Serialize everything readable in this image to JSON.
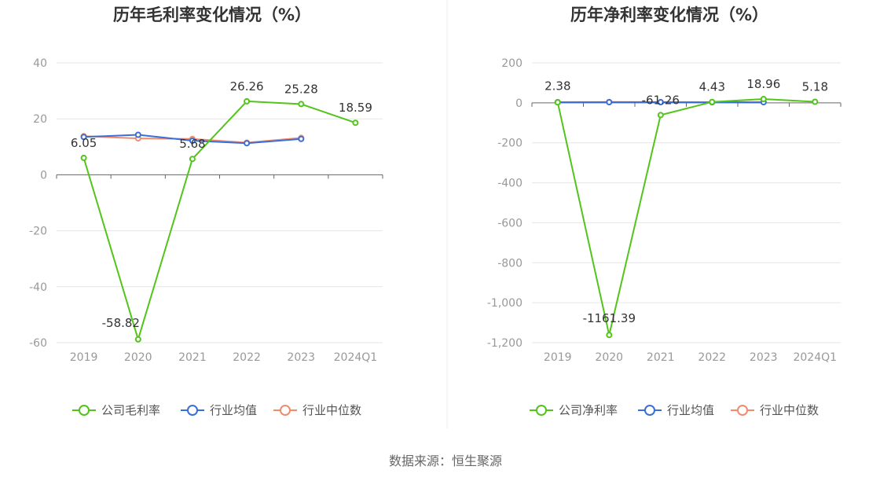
{
  "colors": {
    "company": "#52c41a",
    "industry_avg": "#3a6fd8",
    "industry_median": "#f08c6c",
    "grid": "#e6e6e6",
    "axis": "#666666",
    "divider": "#eeeeee"
  },
  "source_text": "数据来源：恒生聚源",
  "chart_data": [
    {
      "type": "line",
      "title": "历年毛利率变化情况（%）",
      "categories": [
        "2019",
        "2020",
        "2021",
        "2022",
        "2023",
        "2024Q1"
      ],
      "ylim": [
        -60,
        40
      ],
      "yticks": [
        40,
        20,
        0,
        -20,
        -40,
        -60
      ],
      "ytick_labels": [
        "40",
        "20",
        "0",
        "-20",
        "-40",
        "-60"
      ],
      "grid": true,
      "legend_position": "bottom",
      "series": [
        {
          "name": "公司毛利率",
          "color": "#52c41a",
          "values": [
            6.05,
            -58.82,
            5.68,
            26.26,
            25.28,
            18.59
          ],
          "labels": [
            "6.05",
            "-58.82",
            "5.68",
            "26.26",
            "25.28",
            "18.59"
          ]
        },
        {
          "name": "行业均值",
          "color": "#3a6fd8",
          "values": [
            13.5,
            14.3,
            12.2,
            11.3,
            12.8,
            null
          ]
        },
        {
          "name": "行业中位数",
          "color": "#f08c6c",
          "values": [
            13.8,
            13.0,
            12.8,
            11.5,
            13.2,
            null
          ]
        }
      ]
    },
    {
      "type": "line",
      "title": "历年净利率变化情况（%）",
      "categories": [
        "2019",
        "2020",
        "2021",
        "2022",
        "2023",
        "2024Q1"
      ],
      "ylim": [
        -1200,
        200
      ],
      "yticks": [
        200,
        0,
        -200,
        -400,
        -600,
        -800,
        -1000,
        -1200
      ],
      "ytick_labels": [
        "200",
        "0",
        "-200",
        "-400",
        "-600",
        "-800",
        "-1,000",
        "-1,200"
      ],
      "grid": true,
      "legend_position": "bottom",
      "series": [
        {
          "name": "公司净利率",
          "color": "#52c41a",
          "values": [
            2.38,
            -1161.39,
            -61.26,
            4.43,
            18.96,
            5.18
          ],
          "labels": [
            "2.38",
            "-1161.39",
            "-61.26",
            "4.43",
            "18.96",
            "5.18"
          ]
        },
        {
          "name": "行业均值",
          "color": "#3a6fd8",
          "values": [
            3.0,
            3.5,
            3.2,
            2.8,
            3.1,
            null
          ]
        },
        {
          "name": "行业中位数",
          "color": "#f08c6c",
          "values": [
            3.5,
            4.0,
            3.8,
            3.0,
            3.6,
            null
          ]
        }
      ]
    }
  ]
}
